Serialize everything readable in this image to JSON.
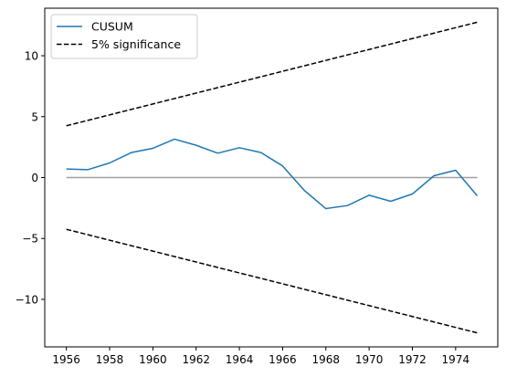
{
  "chart_data": {
    "type": "line",
    "title": "",
    "xlabel": "",
    "ylabel": "",
    "xlim": [
      1955.0,
      1975.95
    ],
    "ylim": [
      -13.9,
      13.9
    ],
    "xticks": [
      1956,
      1958,
      1960,
      1962,
      1964,
      1966,
      1968,
      1970,
      1972,
      1974
    ],
    "yticks": [
      -10,
      -5,
      0,
      5,
      10
    ],
    "ytick_labels": [
      "−10",
      "−5",
      "0",
      "5",
      "10"
    ],
    "grid": false,
    "legend_position": "top-left",
    "series": [
      {
        "name": "CUSUM",
        "color": "#1f77b4",
        "style": "solid",
        "x": [
          1956,
          1957,
          1958,
          1959,
          1960,
          1961,
          1962,
          1963,
          1964,
          1965,
          1966,
          1967,
          1968,
          1969,
          1970,
          1971,
          1972,
          1973,
          1974,
          1975
        ],
        "y": [
          0.7,
          0.65,
          1.2,
          2.05,
          2.4,
          3.15,
          2.65,
          2.0,
          2.45,
          2.05,
          0.95,
          -1.05,
          -2.55,
          -2.3,
          -1.45,
          -1.95,
          -1.35,
          0.15,
          0.6,
          -1.5
        ]
      },
      {
        "name": "5% significance",
        "color": "#000000",
        "style": "dashed",
        "x": [
          1956,
          1975
        ],
        "y": [
          4.25,
          12.75
        ]
      },
      {
        "name": "",
        "color": "#000000",
        "style": "dashed",
        "x": [
          1956,
          1975
        ],
        "y": [
          -4.25,
          -12.75
        ]
      },
      {
        "name": "",
        "color": "#a0a0a0",
        "style": "solid",
        "x": [
          1956,
          1975
        ],
        "y": [
          0,
          0
        ]
      }
    ]
  }
}
